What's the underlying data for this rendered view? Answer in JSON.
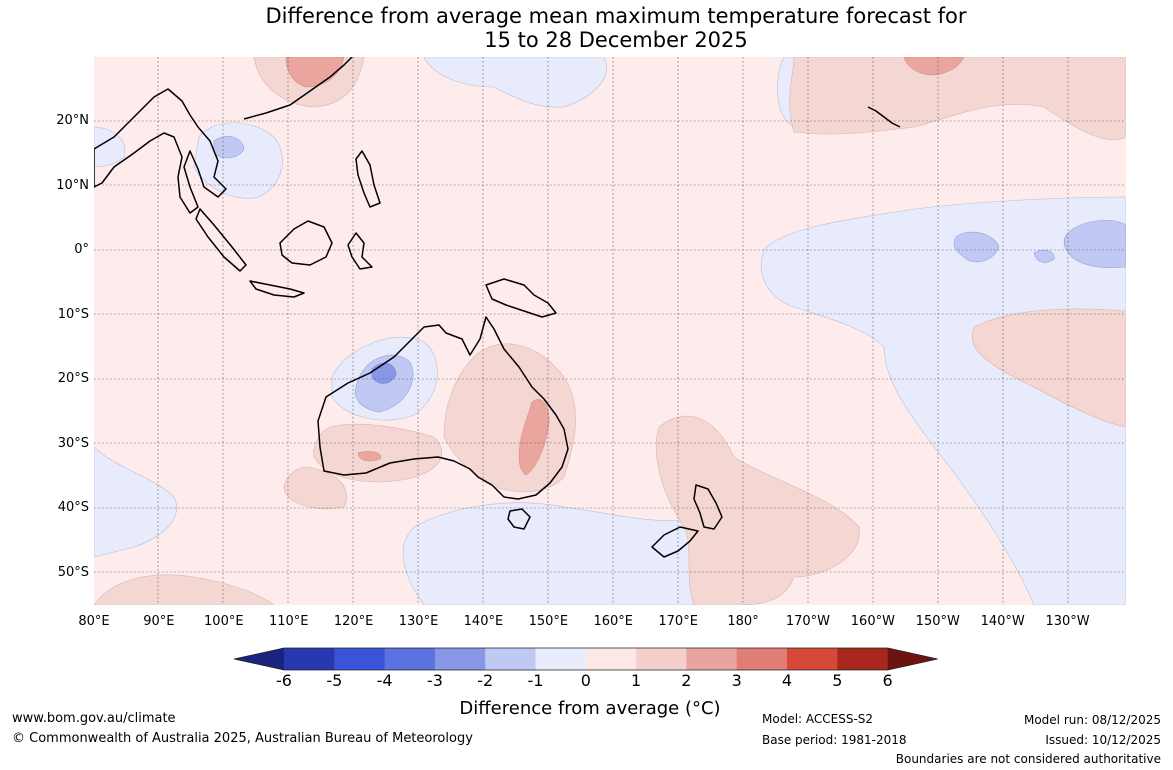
{
  "title_line1": "Difference from average mean maximum temperature forecast for",
  "title_line2": "15 to 28 December 2025",
  "y_labels": [
    "20°N",
    "10°N",
    "0°",
    "10°S",
    "20°S",
    "30°S",
    "40°S",
    "50°S"
  ],
  "x_labels": [
    "80°E",
    "90°E",
    "100°E",
    "110°E",
    "120°E",
    "130°E",
    "140°E",
    "150°E",
    "160°E",
    "170°E",
    "180°",
    "170°W",
    "160°W",
    "150°W",
    "140°W",
    "130°W"
  ],
  "map_extent": {
    "lon_min": 80,
    "lon_max": 239,
    "lat_min": -55,
    "lat_max": 30
  },
  "colorbar": {
    "ticks": [
      "-6",
      "-5",
      "-4",
      "-3",
      "-2",
      "-1",
      "0",
      "1",
      "2",
      "3",
      "4",
      "5",
      "6"
    ],
    "colors": [
      "#1a237e",
      "#2838b0",
      "#3a53d8",
      "#5b72e0",
      "#8896e6",
      "#c0c8f4",
      "#e8ecfc",
      "#fde8e6",
      "#f4cfcb",
      "#eaa49f",
      "#e07e76",
      "#d64838",
      "#a82820",
      "#6e1410"
    ],
    "label": "Difference from average (°C)"
  },
  "footer": {
    "website": "www.bom.gov.au/climate",
    "copyright": "© Commonwealth of Australia 2025, Australian Bureau of Meteorology",
    "model": "Model: ACCESS-S2",
    "base_period": "Base period: 1981-2018",
    "model_run": "Model run: 08/12/2025",
    "issued": "Issued: 10/12/2025",
    "disclaimer": "Boundaries are not considered authoritative"
  }
}
